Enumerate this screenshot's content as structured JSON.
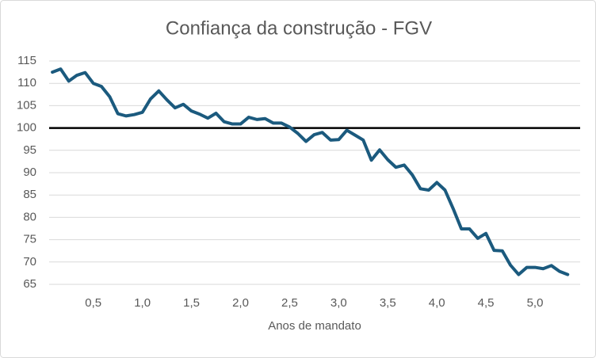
{
  "chart_data": {
    "type": "line",
    "title": "Confiança da construção - FGV",
    "x_label": "Anos de mandato",
    "x": [
      0.083,
      0.167,
      0.25,
      0.333,
      0.417,
      0.5,
      0.583,
      0.667,
      0.75,
      0.833,
      0.917,
      1.0,
      1.083,
      1.167,
      1.25,
      1.333,
      1.417,
      1.5,
      1.583,
      1.667,
      1.75,
      1.833,
      1.917,
      2.0,
      2.083,
      2.167,
      2.25,
      2.333,
      2.417,
      2.5,
      2.583,
      2.667,
      2.75,
      2.833,
      2.917,
      3.0,
      3.083,
      3.167,
      3.25,
      3.333,
      3.417,
      3.5,
      3.583,
      3.667,
      3.75,
      3.833,
      3.917,
      4.0,
      4.083,
      4.167,
      4.25,
      4.333,
      4.417,
      4.5,
      4.583,
      4.667,
      4.75,
      4.833,
      4.917,
      5.0,
      5.083,
      5.167,
      5.25,
      5.333
    ],
    "series": [
      {
        "name": "Confiança da construção",
        "color": "#1b5a7e",
        "values": [
          112.5,
          113.2,
          110.5,
          111.8,
          112.4,
          110,
          109.3,
          107,
          103.2,
          102.7,
          103,
          103.5,
          106.5,
          108.3,
          106.3,
          104.5,
          105.3,
          103.8,
          103.1,
          102.2,
          103.3,
          101.4,
          100.9,
          100.9,
          102.4,
          101.9,
          102.1,
          101.1,
          101.1,
          100.2,
          98.8,
          97,
          98.5,
          99,
          97.3,
          97.4,
          99.5,
          98.4,
          97.3,
          92.8,
          95.1,
          92.9,
          91.2,
          91.7,
          89.5,
          86.4,
          86.1,
          87.8,
          86.1,
          81.9,
          77.4,
          77.4,
          75.3,
          76.4,
          72.6,
          72.5,
          69.3,
          67.2,
          68.8,
          68.8,
          68.5,
          69.2,
          67.9,
          67.2
        ]
      }
    ],
    "reference_line": 100,
    "reference_color": "#000000",
    "xlim": [
      0.05,
      5.46
    ],
    "xticks": [
      {
        "value": 0.5,
        "label": "0,5"
      },
      {
        "value": 1.0,
        "label": "1,0"
      },
      {
        "value": 1.5,
        "label": "1,5"
      },
      {
        "value": 2.0,
        "label": "2,0"
      },
      {
        "value": 2.5,
        "label": "2,5"
      },
      {
        "value": 3.0,
        "label": "3,0"
      },
      {
        "value": 3.5,
        "label": "3,5"
      },
      {
        "value": 4.0,
        "label": "4,0"
      },
      {
        "value": 4.5,
        "label": "4,5"
      },
      {
        "value": 5.0,
        "label": "5,0"
      }
    ],
    "ylim": [
      65,
      115
    ],
    "yticks": [
      65,
      70,
      75,
      80,
      85,
      90,
      95,
      100,
      105,
      110,
      115
    ],
    "grid": true
  }
}
